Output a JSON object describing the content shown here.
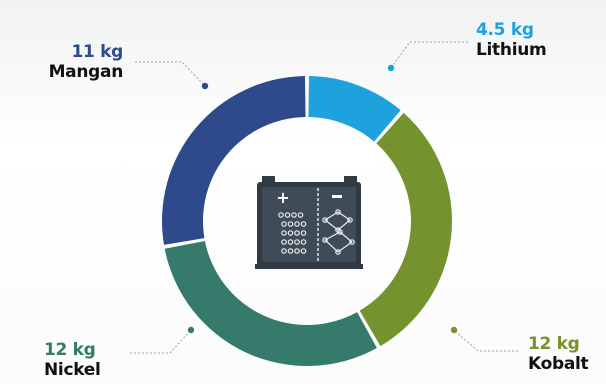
{
  "chart_data": {
    "type": "pie",
    "unit": "kg",
    "slices": [
      {
        "name": "Lithium",
        "value": 4.5,
        "value_label": "4.5 kg",
        "color": "#1ea1dc"
      },
      {
        "name": "Kobalt",
        "value": 12,
        "value_label": "12 kg",
        "color": "#74922d"
      },
      {
        "name": "Nickel",
        "value": 12,
        "value_label": "12 kg",
        "color": "#357a6b"
      },
      {
        "name": "Mangan",
        "value": 11,
        "value_label": "11 kg",
        "color": "#2e4a8a"
      }
    ],
    "center_icon": "battery-icon",
    "legend": "none"
  }
}
